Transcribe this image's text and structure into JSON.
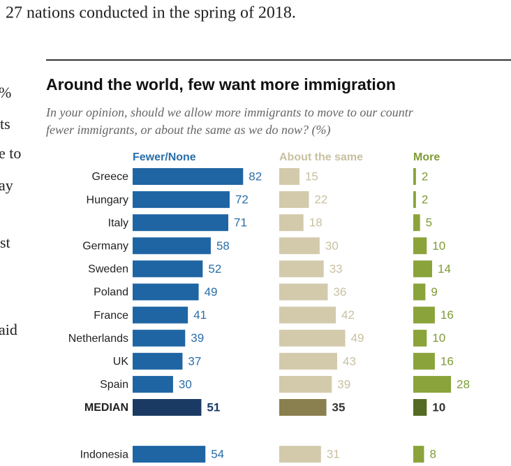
{
  "page": {
    "intro": "27 nations conducted in the spring of 2018.",
    "fragments": [
      "%",
      "ts",
      "e to",
      "ay",
      "st",
      "aid"
    ]
  },
  "chart_data": {
    "type": "bar",
    "title": "Around the world, few want more immigration",
    "subtitle": [
      "In your opinion, should we allow more immigrants to move to our countr",
      "fewer immigrants, or about the same as we do now? (%)"
    ],
    "categories": [
      "Greece",
      "Hungary",
      "Italy",
      "Germany",
      "Sweden",
      "Poland",
      "France",
      "Netherlands",
      "UK",
      "Spain",
      "MEDIAN",
      "Indonesia"
    ],
    "highlight_index": 10,
    "series": [
      {
        "name": "Fewer/None",
        "color": "#1f65a3",
        "label_color": "#2a6ea9",
        "highlight_color": "#1b3a63",
        "values": [
          82,
          72,
          71,
          58,
          52,
          49,
          41,
          39,
          37,
          30,
          51,
          54
        ]
      },
      {
        "name": "About the same",
        "color": "#d3caac",
        "label_color": "#c9c0a1",
        "highlight_color": "#8a7f4e",
        "values": [
          15,
          22,
          18,
          30,
          33,
          36,
          42,
          49,
          43,
          39,
          35,
          31
        ]
      },
      {
        "name": "More",
        "color": "#8aa33a",
        "label_color": "#7d9b34",
        "highlight_color": "#556a23",
        "values": [
          2,
          2,
          5,
          10,
          14,
          9,
          16,
          10,
          16,
          28,
          10,
          8
        ]
      }
    ]
  }
}
